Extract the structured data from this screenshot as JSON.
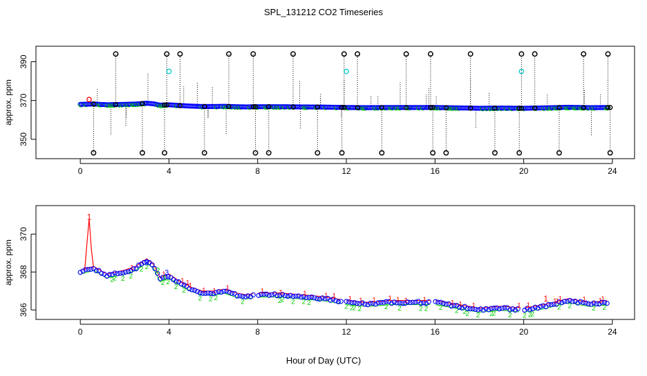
{
  "chart_data": {
    "title": "SPL_131212  CO2 Timeseries",
    "xlabel": "Hour of Day (UTC)",
    "colors": {
      "black": "#000000",
      "red": "#ff0000",
      "blue": "#0000ff",
      "green": "#00cc00",
      "cyan": "#00cccc"
    },
    "panels": [
      {
        "type": "scatter",
        "ylabel": "approx. ppm",
        "xlim": [
          -2,
          25
        ],
        "ylim": [
          340,
          398
        ],
        "xticks": [
          0,
          4,
          8,
          12,
          16,
          20,
          24
        ],
        "yticks": [
          350,
          370,
          390
        ],
        "base": [
          [
            0,
            368.0
          ],
          [
            0.6,
            368.2
          ],
          [
            1.2,
            367.8
          ],
          [
            2.0,
            368.0
          ],
          [
            2.5,
            368.2
          ],
          [
            3.0,
            368.6
          ],
          [
            3.3,
            368.3
          ],
          [
            3.6,
            367.6
          ],
          [
            4.0,
            367.8
          ],
          [
            4.5,
            367.4
          ],
          [
            5.0,
            367.1
          ],
          [
            5.5,
            366.9
          ],
          [
            6.0,
            366.9
          ],
          [
            6.5,
            367.0
          ],
          [
            7.0,
            366.8
          ],
          [
            7.5,
            366.7
          ],
          [
            8.0,
            366.8
          ],
          [
            9.0,
            366.8
          ],
          [
            10.0,
            366.7
          ],
          [
            11.0,
            366.6
          ],
          [
            12.0,
            366.4
          ],
          [
            13.0,
            366.3
          ],
          [
            14.0,
            366.4
          ],
          [
            15.0,
            366.4
          ],
          [
            16.0,
            366.4
          ],
          [
            17.0,
            366.2
          ],
          [
            18.0,
            366.0
          ],
          [
            19.0,
            366.1
          ],
          [
            20.0,
            366.0
          ],
          [
            21.0,
            366.2
          ],
          [
            22.0,
            366.5
          ],
          [
            23.0,
            366.3
          ],
          [
            23.8,
            366.4
          ]
        ],
        "extra_points": [
          {
            "x": 0.4,
            "y": 370.5,
            "series": "red"
          },
          {
            "x": 4.0,
            "y": 385,
            "series": "cyan"
          },
          {
            "x": 12.0,
            "y": 385,
            "series": "cyan"
          },
          {
            "x": 19.9,
            "y": 385,
            "series": "cyan"
          }
        ],
        "spikes": [
          {
            "x": 0.6,
            "y": 343,
            "series": "black"
          },
          {
            "x": 1.6,
            "y": 394,
            "series": "black"
          },
          {
            "x": 2.8,
            "y": 343,
            "series": "black"
          },
          {
            "x": 3.8,
            "y": 343,
            "series": "black"
          },
          {
            "x": 3.9,
            "y": 394,
            "series": "black"
          },
          {
            "x": 4.5,
            "y": 394,
            "series": "black"
          },
          {
            "x": 5.6,
            "y": 343,
            "series": "black"
          },
          {
            "x": 6.7,
            "y": 394,
            "series": "black"
          },
          {
            "x": 7.8,
            "y": 394,
            "series": "black"
          },
          {
            "x": 7.9,
            "y": 343,
            "series": "black"
          },
          {
            "x": 8.5,
            "y": 343,
            "series": "black"
          },
          {
            "x": 9.6,
            "y": 394,
            "series": "black"
          },
          {
            "x": 10.7,
            "y": 343,
            "series": "black"
          },
          {
            "x": 11.8,
            "y": 343,
            "series": "black"
          },
          {
            "x": 11.9,
            "y": 394,
            "series": "black"
          },
          {
            "x": 12.5,
            "y": 394,
            "series": "black"
          },
          {
            "x": 13.6,
            "y": 343,
            "series": "black"
          },
          {
            "x": 14.7,
            "y": 394,
            "series": "black"
          },
          {
            "x": 15.8,
            "y": 394,
            "series": "black"
          },
          {
            "x": 15.9,
            "y": 343,
            "series": "black"
          },
          {
            "x": 16.5,
            "y": 343,
            "series": "black"
          },
          {
            "x": 17.6,
            "y": 394,
            "series": "black"
          },
          {
            "x": 18.7,
            "y": 343,
            "series": "black"
          },
          {
            "x": 19.8,
            "y": 343,
            "series": "black"
          },
          {
            "x": 19.9,
            "y": 394,
            "series": "black"
          },
          {
            "x": 20.5,
            "y": 394,
            "series": "black"
          },
          {
            "x": 21.6,
            "y": 343,
            "series": "black"
          },
          {
            "x": 22.7,
            "y": 394,
            "series": "black"
          },
          {
            "x": 23.8,
            "y": 394,
            "series": "black"
          },
          {
            "x": 23.9,
            "y": 343,
            "series": "black"
          }
        ]
      },
      {
        "type": "scatter",
        "ylabel": "approx. ppm",
        "xlim": [
          -2,
          25
        ],
        "ylim": [
          365.5,
          371.5
        ],
        "xticks": [
          0,
          4,
          8,
          12,
          16,
          20,
          24
        ],
        "yticks": [
          366,
          368,
          370
        ],
        "base": [
          [
            0,
            368.0
          ],
          [
            0.6,
            368.2
          ],
          [
            1.2,
            367.8
          ],
          [
            2.0,
            368.0
          ],
          [
            2.5,
            368.2
          ],
          [
            3.0,
            368.6
          ],
          [
            3.3,
            368.3
          ],
          [
            3.6,
            367.6
          ],
          [
            4.0,
            367.8
          ],
          [
            4.5,
            367.4
          ],
          [
            5.0,
            367.1
          ],
          [
            5.5,
            366.9
          ],
          [
            6.0,
            366.9
          ],
          [
            6.5,
            367.0
          ],
          [
            7.0,
            366.8
          ],
          [
            7.5,
            366.7
          ],
          [
            8.0,
            366.8
          ],
          [
            9.0,
            366.8
          ],
          [
            10.0,
            366.7
          ],
          [
            11.0,
            366.6
          ],
          [
            12.0,
            366.4
          ],
          [
            13.0,
            366.3
          ],
          [
            14.0,
            366.4
          ],
          [
            15.0,
            366.4
          ],
          [
            16.0,
            366.4
          ],
          [
            17.0,
            366.2
          ],
          [
            18.0,
            366.0
          ],
          [
            19.0,
            366.1
          ],
          [
            20.0,
            366.0
          ],
          [
            21.0,
            366.2
          ],
          [
            22.0,
            366.5
          ],
          [
            23.0,
            366.3
          ],
          [
            23.8,
            366.4
          ]
        ],
        "gaps": [
          [
            7.8,
            8.0
          ],
          [
            11.8,
            12.0
          ],
          [
            15.8,
            16.0
          ],
          [
            19.8,
            20.0
          ]
        ],
        "red_spike": [
          [
            0.2,
            368.1
          ],
          [
            0.3,
            369.5
          ],
          [
            0.4,
            370.8
          ],
          [
            0.5,
            369.2
          ],
          [
            0.6,
            368.2
          ]
        ],
        "red_labels": [
          {
            "x": 0.4,
            "y": 370.9,
            "text": "1"
          },
          {
            "x": 21.0,
            "y": 366.6,
            "text": "1"
          }
        ],
        "series_labels": [
          {
            "x": 3.0,
            "y": 368.5,
            "text": "3",
            "series": "blue"
          },
          {
            "x": 3.5,
            "y": 368.1,
            "text": "2",
            "series": "green"
          },
          {
            "x": 3.8,
            "y": 367.7,
            "text": "1",
            "series": "green"
          },
          {
            "x": 3.9,
            "y": 368.0,
            "text": "3",
            "series": "blue"
          }
        ]
      }
    ]
  }
}
